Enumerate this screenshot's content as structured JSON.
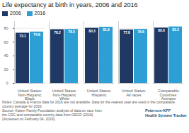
{
  "chart_data": {
    "type": "bar",
    "title": "Life expectancy at birth in years, 2006 and 2016",
    "categories": [
      "United States:\nNon-Hispanic\nBlack",
      "United States:\nNon-Hispanic\nWhite",
      "United States:\nHispanic",
      "United States:\nAll races",
      "Comparable\nCountries:\nAverage"
    ],
    "series": [
      {
        "name": "2006",
        "color": "#1f3864",
        "values": [
          73.1,
          78.2,
          80.3,
          77.8,
          80.6
        ]
      },
      {
        "name": "2016",
        "color": "#2e9fd4",
        "values": [
          74.8,
          78.5,
          81.8,
          78.6,
          82.2
        ]
      }
    ],
    "ylim": [
      0,
      90
    ],
    "yticks": [
      0,
      20,
      40,
      60,
      80
    ],
    "grid": true,
    "legend": "upper left",
    "data_labels": true,
    "annotations": [
      "Notes: Canada & France data for 2016 are not available. Data for the nearest year are used in the comparable\ncountry average for 2016.",
      "Source: Kaiser Family Foundation analysis of data on race from\nthe CDC and comparable country data from OECD (2018)\n(Accessed on February 04, 2019).",
      "Peterson-KFF\nHealth System Tracker"
    ]
  }
}
